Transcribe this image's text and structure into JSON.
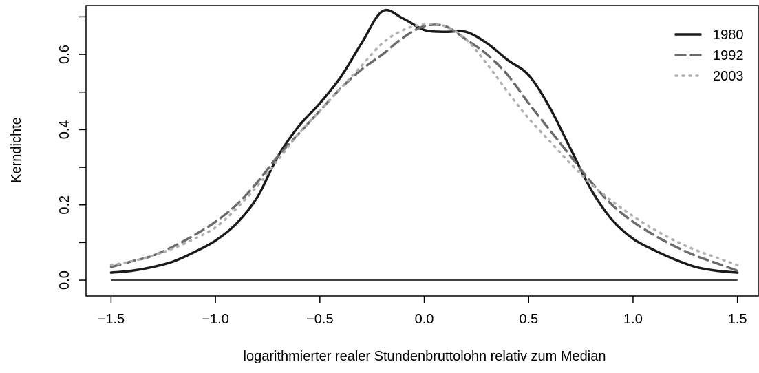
{
  "chart_data": {
    "type": "line",
    "xlabel": "logarithmierter realer Stundenbruttolohn relativ zum Median",
    "ylabel": "Kerndichte",
    "x": [
      -1.5,
      -1.4,
      -1.3,
      -1.2,
      -1.1,
      -1.0,
      -0.9,
      -0.8,
      -0.7,
      -0.6,
      -0.5,
      -0.4,
      -0.3,
      -0.2,
      -0.1,
      0.0,
      0.1,
      0.2,
      0.3,
      0.4,
      0.5,
      0.6,
      0.7,
      0.8,
      0.9,
      1.0,
      1.1,
      1.2,
      1.3,
      1.4,
      1.5
    ],
    "series": [
      {
        "name": "1980",
        "color": "#1a1a1a",
        "linestyle": "solid",
        "values": [
          0.02,
          0.025,
          0.035,
          0.05,
          0.075,
          0.105,
          0.15,
          0.22,
          0.33,
          0.41,
          0.47,
          0.54,
          0.63,
          0.715,
          0.695,
          0.665,
          0.66,
          0.66,
          0.63,
          0.585,
          0.545,
          0.46,
          0.35,
          0.24,
          0.16,
          0.11,
          0.08,
          0.055,
          0.035,
          0.025,
          0.02
        ]
      },
      {
        "name": "1992",
        "color": "#6b6b6b",
        "linestyle": "dashed",
        "values": [
          0.035,
          0.05,
          0.065,
          0.09,
          0.12,
          0.155,
          0.2,
          0.26,
          0.33,
          0.39,
          0.45,
          0.51,
          0.56,
          0.6,
          0.645,
          0.675,
          0.675,
          0.64,
          0.6,
          0.545,
          0.47,
          0.4,
          0.33,
          0.26,
          0.2,
          0.155,
          0.12,
          0.09,
          0.065,
          0.045,
          0.025
        ]
      },
      {
        "name": "2003",
        "color": "#b0b0b0",
        "linestyle": "dotted",
        "values": [
          0.04,
          0.05,
          0.065,
          0.085,
          0.11,
          0.14,
          0.19,
          0.25,
          0.32,
          0.39,
          0.45,
          0.51,
          0.57,
          0.63,
          0.665,
          0.68,
          0.675,
          0.64,
          0.575,
          0.5,
          0.43,
          0.37,
          0.31,
          0.255,
          0.21,
          0.17,
          0.135,
          0.105,
          0.08,
          0.06,
          0.04
        ]
      }
    ],
    "xlim": [
      -1.62,
      1.6
    ],
    "ylim": [
      -0.042,
      0.73
    ],
    "xticks": [
      {
        "value": -1.5,
        "label": "−1.5"
      },
      {
        "value": -1.0,
        "label": "−1.0"
      },
      {
        "value": -0.5,
        "label": "−0.5"
      },
      {
        "value": 0,
        "label": "0.0"
      },
      0.5,
      {
        "value": 1,
        "label": "1.0"
      },
      1.5
    ],
    "yticks": [
      {
        "value": 0,
        "label": "0.0"
      },
      0.2,
      0.4,
      0.6
    ],
    "yticks_minor": [
      0.1,
      0.3,
      0.5,
      0.7
    ],
    "legend": "topright"
  }
}
